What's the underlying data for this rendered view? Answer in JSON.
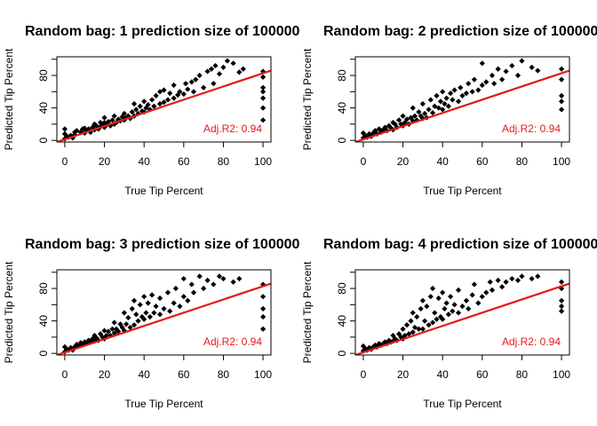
{
  "colors": {
    "points": "#000000",
    "fit_line": "#e31a1c",
    "annotation": "#e31a1c",
    "axes": "#000000"
  },
  "chart_data": [
    {
      "type": "scatter",
      "title": "Random bag: 1 prediction size of 100000",
      "xlabel": "True Tip Percent",
      "ylabel": "Predicted Tip Percent",
      "xlim": [
        -4,
        104
      ],
      "ylim": [
        -2,
        103
      ],
      "xticks": [
        0,
        20,
        40,
        60,
        80,
        100
      ],
      "yticks": [
        0,
        20,
        40,
        60,
        80,
        100
      ],
      "ytick_labels": [
        "0",
        "",
        "40",
        "",
        "80",
        ""
      ],
      "fit_line": {
        "x": [
          -4,
          104
        ],
        "y": [
          -2,
          86
        ]
      },
      "annotation": "Adj.R2: 0.94",
      "points": [
        [
          0,
          2
        ],
        [
          0,
          8
        ],
        [
          0,
          14
        ],
        [
          1,
          5
        ],
        [
          2,
          4
        ],
        [
          3,
          6
        ],
        [
          4,
          3
        ],
        [
          5,
          7
        ],
        [
          5,
          10
        ],
        [
          6,
          12
        ],
        [
          8,
          10
        ],
        [
          9,
          14
        ],
        [
          10,
          9
        ],
        [
          10,
          15
        ],
        [
          11,
          12
        ],
        [
          12,
          14
        ],
        [
          13,
          10
        ],
        [
          14,
          16
        ],
        [
          15,
          13
        ],
        [
          15,
          20
        ],
        [
          16,
          18
        ],
        [
          17,
          14
        ],
        [
          18,
          17
        ],
        [
          18,
          22
        ],
        [
          19,
          20
        ],
        [
          20,
          16
        ],
        [
          20,
          22
        ],
        [
          20,
          28
        ],
        [
          21,
          19
        ],
        [
          22,
          23
        ],
        [
          23,
          18
        ],
        [
          24,
          25
        ],
        [
          25,
          20
        ],
        [
          25,
          30
        ],
        [
          26,
          22
        ],
        [
          27,
          26
        ],
        [
          28,
          24
        ],
        [
          29,
          29
        ],
        [
          30,
          25
        ],
        [
          30,
          33
        ],
        [
          31,
          28
        ],
        [
          32,
          30
        ],
        [
          33,
          27
        ],
        [
          34,
          35
        ],
        [
          35,
          30
        ],
        [
          35,
          45
        ],
        [
          36,
          38
        ],
        [
          37,
          33
        ],
        [
          38,
          42
        ],
        [
          39,
          36
        ],
        [
          40,
          35
        ],
        [
          40,
          48
        ],
        [
          41,
          40
        ],
        [
          42,
          44
        ],
        [
          43,
          38
        ],
        [
          44,
          50
        ],
        [
          45,
          42
        ],
        [
          46,
          55
        ],
        [
          48,
          45
        ],
        [
          48,
          60
        ],
        [
          50,
          47
        ],
        [
          50,
          62
        ],
        [
          52,
          50
        ],
        [
          53,
          58
        ],
        [
          55,
          52
        ],
        [
          55,
          68
        ],
        [
          57,
          56
        ],
        [
          58,
          60
        ],
        [
          60,
          57
        ],
        [
          61,
          70
        ],
        [
          62,
          63
        ],
        [
          64,
          72
        ],
        [
          65,
          60
        ],
        [
          66,
          75
        ],
        [
          68,
          80
        ],
        [
          70,
          65
        ],
        [
          72,
          85
        ],
        [
          74,
          88
        ],
        [
          75,
          70
        ],
        [
          76,
          92
        ],
        [
          78,
          82
        ],
        [
          80,
          90
        ],
        [
          82,
          98
        ],
        [
          85,
          95
        ],
        [
          88,
          84
        ],
        [
          90,
          88
        ],
        [
          100,
          25
        ],
        [
          100,
          40
        ],
        [
          100,
          52
        ],
        [
          100,
          60
        ],
        [
          100,
          65
        ],
        [
          100,
          78
        ],
        [
          100,
          85
        ]
      ]
    },
    {
      "type": "scatter",
      "title": "Random bag: 2 prediction size of 100000",
      "xlabel": "True Tip Percent",
      "ylabel": "Predicted Tip Percent",
      "xlim": [
        -4,
        104
      ],
      "ylim": [
        -2,
        103
      ],
      "xticks": [
        0,
        20,
        40,
        60,
        80,
        100
      ],
      "yticks": [
        0,
        20,
        40,
        60,
        80,
        100
      ],
      "ytick_labels": [
        "0",
        "",
        "40",
        "",
        "80",
        ""
      ],
      "fit_line": {
        "x": [
          -4,
          104
        ],
        "y": [
          -2,
          86
        ]
      },
      "annotation": "Adj.R2: 0.94",
      "points": [
        [
          0,
          3
        ],
        [
          0,
          9
        ],
        [
          1,
          6
        ],
        [
          2,
          4
        ],
        [
          3,
          8
        ],
        [
          4,
          5
        ],
        [
          5,
          9
        ],
        [
          6,
          12
        ],
        [
          7,
          8
        ],
        [
          8,
          14
        ],
        [
          9,
          10
        ],
        [
          10,
          13
        ],
        [
          11,
          16
        ],
        [
          12,
          12
        ],
        [
          13,
          18
        ],
        [
          14,
          15
        ],
        [
          15,
          13
        ],
        [
          15,
          22
        ],
        [
          16,
          20
        ],
        [
          17,
          16
        ],
        [
          18,
          25
        ],
        [
          19,
          20
        ],
        [
          20,
          18
        ],
        [
          20,
          30
        ],
        [
          21,
          22
        ],
        [
          22,
          26
        ],
        [
          23,
          20
        ],
        [
          24,
          28
        ],
        [
          25,
          24
        ],
        [
          25,
          40
        ],
        [
          26,
          30
        ],
        [
          27,
          25
        ],
        [
          28,
          35
        ],
        [
          29,
          30
        ],
        [
          30,
          27
        ],
        [
          30,
          45
        ],
        [
          31,
          33
        ],
        [
          32,
          28
        ],
        [
          33,
          38
        ],
        [
          34,
          50
        ],
        [
          35,
          34
        ],
        [
          36,
          42
        ],
        [
          37,
          55
        ],
        [
          38,
          40
        ],
        [
          39,
          48
        ],
        [
          40,
          38
        ],
        [
          40,
          60
        ],
        [
          41,
          45
        ],
        [
          42,
          52
        ],
        [
          43,
          42
        ],
        [
          44,
          58
        ],
        [
          45,
          50
        ],
        [
          46,
          62
        ],
        [
          48,
          48
        ],
        [
          49,
          65
        ],
        [
          50,
          55
        ],
        [
          52,
          58
        ],
        [
          53,
          70
        ],
        [
          55,
          60
        ],
        [
          56,
          75
        ],
        [
          58,
          62
        ],
        [
          60,
          68
        ],
        [
          60,
          95
        ],
        [
          62,
          72
        ],
        [
          65,
          80
        ],
        [
          66,
          70
        ],
        [
          68,
          88
        ],
        [
          70,
          75
        ],
        [
          72,
          85
        ],
        [
          75,
          92
        ],
        [
          78,
          80
        ],
        [
          80,
          98
        ],
        [
          85,
          90
        ],
        [
          88,
          86
        ],
        [
          100,
          38
        ],
        [
          100,
          48
        ],
        [
          100,
          55
        ],
        [
          100,
          75
        ],
        [
          100,
          88
        ]
      ]
    },
    {
      "type": "scatter",
      "title": "Random bag: 3 prediction size of 100000",
      "xlabel": "True Tip Percent",
      "ylabel": "Predicted Tip Percent",
      "xlim": [
        -4,
        104
      ],
      "ylim": [
        -2,
        103
      ],
      "xticks": [
        0,
        20,
        40,
        60,
        80,
        100
      ],
      "yticks": [
        0,
        20,
        40,
        60,
        80,
        100
      ],
      "ytick_labels": [
        "0",
        "",
        "40",
        "",
        "80",
        ""
      ],
      "fit_line": {
        "x": [
          -4,
          104
        ],
        "y": [
          -2,
          86
        ]
      },
      "annotation": "Adj.R2: 0.94",
      "points": [
        [
          0,
          2
        ],
        [
          0,
          8
        ],
        [
          1,
          5
        ],
        [
          2,
          4
        ],
        [
          3,
          7
        ],
        [
          4,
          4
        ],
        [
          5,
          8
        ],
        [
          6,
          11
        ],
        [
          7,
          9
        ],
        [
          8,
          13
        ],
        [
          9,
          11
        ],
        [
          10,
          14
        ],
        [
          11,
          12
        ],
        [
          12,
          16
        ],
        [
          13,
          14
        ],
        [
          14,
          18
        ],
        [
          15,
          15
        ],
        [
          15,
          22
        ],
        [
          16,
          19
        ],
        [
          17,
          16
        ],
        [
          18,
          24
        ],
        [
          19,
          20
        ],
        [
          20,
          18
        ],
        [
          20,
          28
        ],
        [
          21,
          22
        ],
        [
          22,
          27
        ],
        [
          23,
          22
        ],
        [
          24,
          30
        ],
        [
          25,
          25
        ],
        [
          25,
          38
        ],
        [
          26,
          30
        ],
        [
          27,
          27
        ],
        [
          28,
          36
        ],
        [
          29,
          32
        ],
        [
          30,
          28
        ],
        [
          30,
          50
        ],
        [
          31,
          36
        ],
        [
          32,
          44
        ],
        [
          33,
          32
        ],
        [
          34,
          55
        ],
        [
          35,
          35
        ],
        [
          35,
          65
        ],
        [
          36,
          48
        ],
        [
          37,
          40
        ],
        [
          38,
          60
        ],
        [
          39,
          45
        ],
        [
          40,
          42
        ],
        [
          40,
          70
        ],
        [
          41,
          50
        ],
        [
          42,
          62
        ],
        [
          43,
          45
        ],
        [
          44,
          72
        ],
        [
          45,
          50
        ],
        [
          46,
          58
        ],
        [
          48,
          48
        ],
        [
          48,
          68
        ],
        [
          50,
          55
        ],
        [
          52,
          75
        ],
        [
          53,
          52
        ],
        [
          55,
          62
        ],
        [
          56,
          80
        ],
        [
          58,
          58
        ],
        [
          60,
          70
        ],
        [
          60,
          92
        ],
        [
          62,
          65
        ],
        [
          64,
          85
        ],
        [
          65,
          75
        ],
        [
          68,
          95
        ],
        [
          70,
          80
        ],
        [
          72,
          90
        ],
        [
          75,
          85
        ],
        [
          78,
          95
        ],
        [
          80,
          92
        ],
        [
          85,
          88
        ],
        [
          88,
          92
        ],
        [
          100,
          30
        ],
        [
          100,
          45
        ],
        [
          100,
          55
        ],
        [
          100,
          70
        ],
        [
          100,
          85
        ]
      ]
    },
    {
      "type": "scatter",
      "title": "Random bag: 4 prediction size of 100000",
      "xlabel": "True Tip Percent",
      "ylabel": "Predicted Tip Percent",
      "xlim": [
        -4,
        104
      ],
      "ylim": [
        -2,
        103
      ],
      "xticks": [
        0,
        20,
        40,
        60,
        80,
        100
      ],
      "yticks": [
        0,
        20,
        40,
        60,
        80,
        100
      ],
      "ytick_labels": [
        "0",
        "",
        "40",
        "",
        "80",
        ""
      ],
      "fit_line": {
        "x": [
          -4,
          104
        ],
        "y": [
          -2,
          86
        ]
      },
      "annotation": "Adj.R2: 0.94",
      "points": [
        [
          0,
          3
        ],
        [
          0,
          9
        ],
        [
          1,
          6
        ],
        [
          2,
          4
        ],
        [
          3,
          7
        ],
        [
          4,
          5
        ],
        [
          5,
          8
        ],
        [
          6,
          10
        ],
        [
          7,
          8
        ],
        [
          8,
          12
        ],
        [
          9,
          10
        ],
        [
          10,
          12
        ],
        [
          11,
          14
        ],
        [
          12,
          12
        ],
        [
          13,
          16
        ],
        [
          14,
          14
        ],
        [
          15,
          15
        ],
        [
          15,
          22
        ],
        [
          16,
          18
        ],
        [
          17,
          16
        ],
        [
          18,
          24
        ],
        [
          19,
          20
        ],
        [
          20,
          18
        ],
        [
          20,
          30
        ],
        [
          21,
          22
        ],
        [
          22,
          35
        ],
        [
          23,
          24
        ],
        [
          24,
          40
        ],
        [
          25,
          26
        ],
        [
          25,
          50
        ],
        [
          26,
          32
        ],
        [
          27,
          45
        ],
        [
          28,
          30
        ],
        [
          29,
          55
        ],
        [
          30,
          30
        ],
        [
          30,
          65
        ],
        [
          31,
          40
        ],
        [
          32,
          58
        ],
        [
          33,
          35
        ],
        [
          34,
          70
        ],
        [
          35,
          38
        ],
        [
          35,
          80
        ],
        [
          36,
          50
        ],
        [
          37,
          42
        ],
        [
          38,
          68
        ],
        [
          39,
          45
        ],
        [
          40,
          42
        ],
        [
          40,
          75
        ],
        [
          41,
          55
        ],
        [
          42,
          62
        ],
        [
          43,
          48
        ],
        [
          44,
          70
        ],
        [
          45,
          52
        ],
        [
          46,
          60
        ],
        [
          48,
          50
        ],
        [
          48,
          78
        ],
        [
          50,
          58
        ],
        [
          52,
          65
        ],
        [
          53,
          55
        ],
        [
          55,
          72
        ],
        [
          56,
          85
        ],
        [
          58,
          62
        ],
        [
          60,
          70
        ],
        [
          62,
          75
        ],
        [
          64,
          88
        ],
        [
          65,
          78
        ],
        [
          68,
          90
        ],
        [
          70,
          82
        ],
        [
          72,
          88
        ],
        [
          75,
          92
        ],
        [
          78,
          90
        ],
        [
          80,
          95
        ],
        [
          85,
          92
        ],
        [
          88,
          95
        ],
        [
          100,
          52
        ],
        [
          100,
          58
        ],
        [
          100,
          65
        ],
        [
          100,
          80
        ],
        [
          100,
          88
        ]
      ]
    }
  ]
}
